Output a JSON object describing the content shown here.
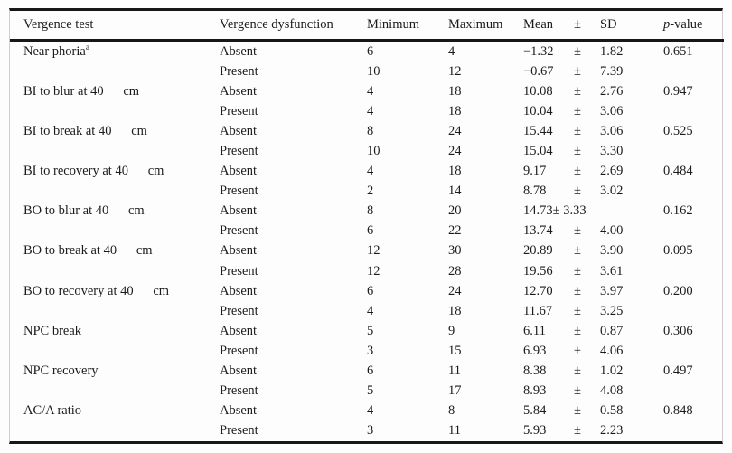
{
  "table": {
    "colors": {
      "rule": "#171717",
      "text": "#1b1b1b",
      "edge_line": "#cfcfcf",
      "background": "#fdfdfd"
    },
    "headers": {
      "test": "Vergence test",
      "dysfunction": "Vergence dysfunction",
      "min": "Minimum",
      "max": "Maximum",
      "mean": "Mean",
      "pm": "±",
      "sd": "SD",
      "p_prefix": "p",
      "p_suffix": "-value"
    },
    "rows": [
      {
        "test": "Near phoria",
        "sup": "a",
        "dysfunction": "Absent",
        "min": "6",
        "max": "4",
        "mean": "−1.32",
        "pm": "±",
        "sd": "1.82",
        "p": "0.651"
      },
      {
        "test": "",
        "sup": "",
        "dysfunction": "Present",
        "min": "10",
        "max": "12",
        "mean": "−0.67",
        "pm": "±",
        "sd": "7.39",
        "p": ""
      },
      {
        "test": "BI to blur at 40      cm",
        "sup": "",
        "dysfunction": "Absent",
        "min": "4",
        "max": "18",
        "mean": "10.08",
        "pm": "±",
        "sd": "2.76",
        "p": "0.947"
      },
      {
        "test": "",
        "sup": "",
        "dysfunction": "Present",
        "min": "4",
        "max": "18",
        "mean": "10.04",
        "pm": "±",
        "sd": "3.06",
        "p": ""
      },
      {
        "test": "BI to break at 40      cm",
        "sup": "",
        "dysfunction": "Absent",
        "min": "8",
        "max": "24",
        "mean": "15.44",
        "pm": "±",
        "sd": "3.06",
        "p": "0.525"
      },
      {
        "test": "",
        "sup": "",
        "dysfunction": "Present",
        "min": "10",
        "max": "24",
        "mean": "15.04",
        "pm": "±",
        "sd": "3.30",
        "p": ""
      },
      {
        "test": "BI to recovery at 40      cm",
        "sup": "",
        "dysfunction": "Absent",
        "min": "4",
        "max": "18",
        "mean": "9.17",
        "pm": "±",
        "sd": "2.69",
        "p": "0.484"
      },
      {
        "test": "",
        "sup": "",
        "dysfunction": "Present",
        "min": "2",
        "max": "14",
        "mean": "8.78",
        "pm": "±",
        "sd": "3.02",
        "p": ""
      },
      {
        "test": "BO to blur at 40      cm",
        "sup": "",
        "dysfunction": "Absent",
        "min": "8",
        "max": "20",
        "combined": "14.73± 3.33",
        "p": "0.162"
      },
      {
        "test": "",
        "sup": "",
        "dysfunction": "Present",
        "min": "6",
        "max": "22",
        "mean": "13.74",
        "pm": "±",
        "sd": "4.00",
        "p": ""
      },
      {
        "test": "BO to break at 40      cm",
        "sup": "",
        "dysfunction": "Absent",
        "min": "12",
        "max": "30",
        "mean": "20.89",
        "pm": "±",
        "sd": "3.90",
        "p": "0.095"
      },
      {
        "test": "",
        "sup": "",
        "dysfunction": "Present",
        "min": "12",
        "max": "28",
        "mean": "19.56",
        "pm": "±",
        "sd": "3.61",
        "p": ""
      },
      {
        "test": "BO to recovery at 40      cm",
        "sup": "",
        "dysfunction": "Absent",
        "min": "6",
        "max": "24",
        "mean": "12.70",
        "pm": "±",
        "sd": "3.97",
        "p": "0.200"
      },
      {
        "test": "",
        "sup": "",
        "dysfunction": "Present",
        "min": "4",
        "max": "18",
        "mean": "11.67",
        "pm": "±",
        "sd": "3.25",
        "p": ""
      },
      {
        "test": "NPC break",
        "sup": "",
        "dysfunction": "Absent",
        "min": "5",
        "max": "9",
        "mean": "6.11",
        "pm": "±",
        "sd": "0.87",
        "p": "0.306"
      },
      {
        "test": "",
        "sup": "",
        "dysfunction": "Present",
        "min": "3",
        "max": "15",
        "mean": "6.93",
        "pm": "±",
        "sd": "4.06",
        "p": ""
      },
      {
        "test": "NPC recovery",
        "sup": "",
        "dysfunction": "Absent",
        "min": "6",
        "max": "11",
        "mean": "8.38",
        "pm": "±",
        "sd": "1.02",
        "p": "0.497"
      },
      {
        "test": "",
        "sup": "",
        "dysfunction": "Present",
        "min": "5",
        "max": "17",
        "mean": "8.93",
        "pm": "±",
        "sd": "4.08",
        "p": ""
      },
      {
        "test": "AC/A ratio",
        "sup": "",
        "dysfunction": "Absent",
        "min": "4",
        "max": "8",
        "mean": "5.84",
        "pm": "±",
        "sd": "0.58",
        "p": "0.848"
      },
      {
        "test": "",
        "sup": "",
        "dysfunction": "Present",
        "min": "3",
        "max": "11",
        "mean": "5.93",
        "pm": "±",
        "sd": "2.23",
        "p": ""
      }
    ]
  }
}
